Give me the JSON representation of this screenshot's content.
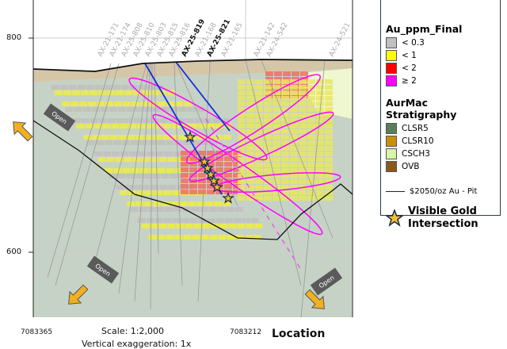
{
  "axes": {
    "y_ticks": [
      "800",
      "600"
    ],
    "x_ticks": [
      "7083365",
      "7083212"
    ],
    "x_title": "Location"
  },
  "scale": "Scale: 1:2,000",
  "vertical_exaggeration": "Vertical exaggeration: 1x",
  "drill_holes": [
    "AX-21-171",
    "AX-21-174",
    "AX-25-808",
    "AX-25-810",
    "AX-25-803",
    "AX-25-815",
    "AX-25-816",
    "AX-25-819",
    "AX-21-168",
    "AX-25-821",
    "AX-21-165",
    "AX-21-142",
    "AX-24-542",
    "AX-24-521"
  ],
  "highlighted_holes": [
    "AX-25-819",
    "AX-25-821"
  ],
  "open_labels": [
    "Open",
    "Open",
    "Open",
    "Open"
  ],
  "legend": {
    "au_title": "Au_ppm_Final",
    "au_items": [
      {
        "label": "< 0.3",
        "color": "#c0c0c0"
      },
      {
        "label": "< 1",
        "color": "#ffff00"
      },
      {
        "label": "< 2",
        "color": "#ff0000"
      },
      {
        "label": "≥ 2",
        "color": "#ff00ff"
      }
    ],
    "strat_title": "AurMac Stratigraphy",
    "strat_items": [
      {
        "label": "CLSR5",
        "color": "#5a7d5a"
      },
      {
        "label": "CLSR10",
        "color": "#c8900a"
      },
      {
        "label": "CSCH3",
        "color": "#d8f5a8"
      },
      {
        "label": "OVB",
        "color": "#8a5a1a"
      }
    ],
    "pit_label": "$2050/oz Au - Pit",
    "visible_gold_label": "Visible Gold Intersection"
  }
}
